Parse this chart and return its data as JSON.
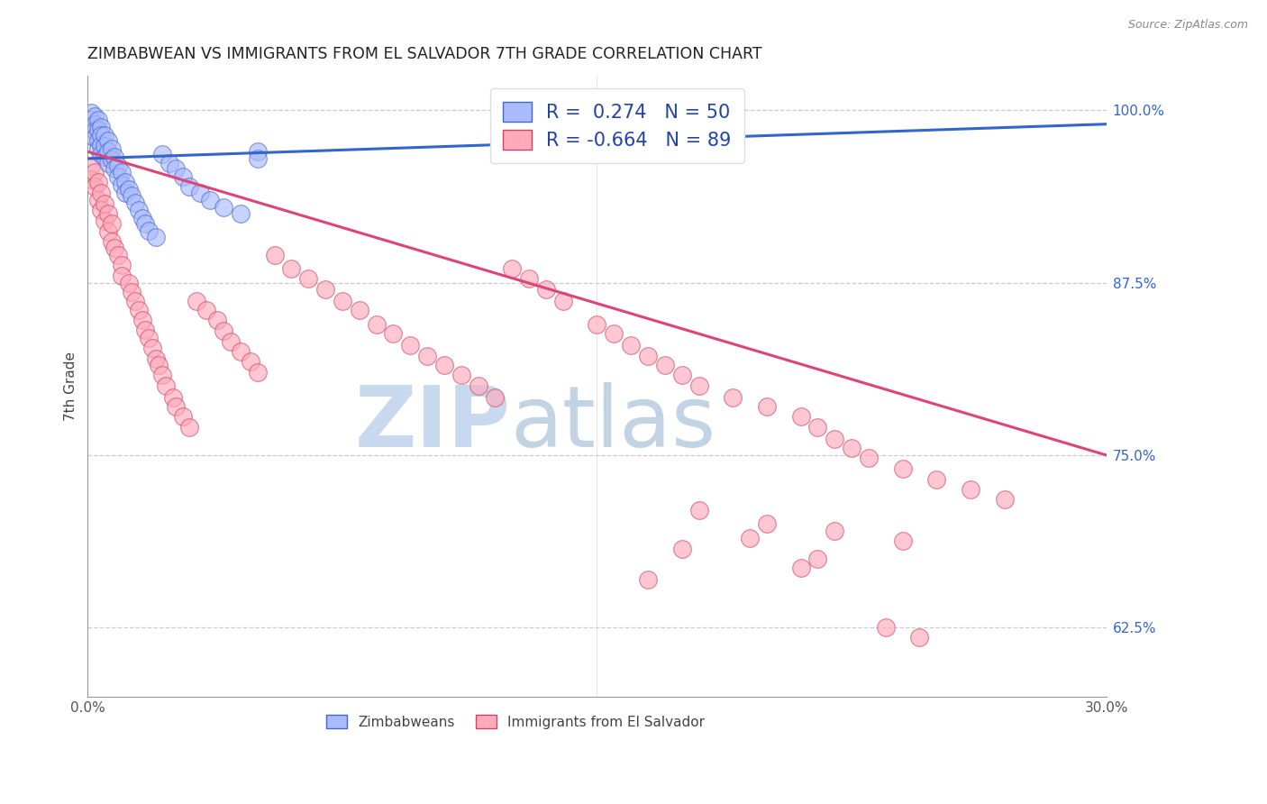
{
  "title": "ZIMBABWEAN VS IMMIGRANTS FROM EL SALVADOR 7TH GRADE CORRELATION CHART",
  "source": "Source: ZipAtlas.com",
  "ylabel": "7th Grade",
  "xlim": [
    0.0,
    0.3
  ],
  "ylim": [
    0.575,
    1.025
  ],
  "yticks_right": [
    0.625,
    0.75,
    0.875,
    1.0
  ],
  "ytickslabels_right": [
    "62.5%",
    "75.0%",
    "87.5%",
    "100.0%"
  ],
  "xtick_positions": [
    0.0,
    0.05,
    0.1,
    0.15,
    0.2,
    0.25,
    0.3
  ],
  "xticklabels": [
    "0.0%",
    "",
    "",
    "",
    "",
    "",
    "30.0%"
  ],
  "blue_R": 0.274,
  "blue_N": 50,
  "pink_R": -0.664,
  "pink_N": 89,
  "blue_scatter_color": "#aabbff",
  "blue_scatter_edge": "#4466cc",
  "pink_scatter_color": "#ffaabb",
  "pink_scatter_edge": "#cc4466",
  "blue_line_color": "#3366cc",
  "pink_line_color": "#dd4477",
  "watermark_zip_color": "#c8d8ee",
  "watermark_atlas_color": "#b8cce0",
  "legend_label_blue": "Zimbabweans",
  "legend_label_pink": "Immigrants from El Salvador",
  "blue_trendline": [
    [
      0.0,
      0.3
    ],
    [
      0.965,
      0.99
    ]
  ],
  "pink_trendline": [
    [
      0.0,
      0.3
    ],
    [
      0.97,
      0.75
    ]
  ],
  "blue_x": [
    0.001,
    0.001,
    0.001,
    0.002,
    0.002,
    0.002,
    0.002,
    0.003,
    0.003,
    0.003,
    0.003,
    0.004,
    0.004,
    0.004,
    0.004,
    0.005,
    0.005,
    0.005,
    0.006,
    0.006,
    0.006,
    0.007,
    0.007,
    0.008,
    0.008,
    0.009,
    0.009,
    0.01,
    0.01,
    0.011,
    0.011,
    0.012,
    0.013,
    0.014,
    0.015,
    0.016,
    0.017,
    0.018,
    0.02,
    0.022,
    0.024,
    0.026,
    0.028,
    0.03,
    0.033,
    0.036,
    0.04,
    0.045,
    0.05,
    0.05
  ],
  "blue_y": [
    0.998,
    0.993,
    0.988,
    0.996,
    0.99,
    0.985,
    0.98,
    0.993,
    0.986,
    0.978,
    0.972,
    0.988,
    0.982,
    0.975,
    0.968,
    0.982,
    0.974,
    0.966,
    0.978,
    0.97,
    0.962,
    0.972,
    0.964,
    0.966,
    0.958,
    0.96,
    0.952,
    0.955,
    0.946,
    0.948,
    0.94,
    0.943,
    0.938,
    0.933,
    0.928,
    0.922,
    0.918,
    0.913,
    0.908,
    0.968,
    0.962,
    0.958,
    0.952,
    0.945,
    0.94,
    0.935,
    0.93,
    0.925,
    0.97,
    0.965
  ],
  "pink_x": [
    0.001,
    0.001,
    0.002,
    0.002,
    0.003,
    0.003,
    0.004,
    0.004,
    0.005,
    0.005,
    0.006,
    0.006,
    0.007,
    0.007,
    0.008,
    0.009,
    0.01,
    0.01,
    0.012,
    0.013,
    0.014,
    0.015,
    0.016,
    0.017,
    0.018,
    0.019,
    0.02,
    0.021,
    0.022,
    0.023,
    0.025,
    0.026,
    0.028,
    0.03,
    0.032,
    0.035,
    0.038,
    0.04,
    0.042,
    0.045,
    0.048,
    0.05,
    0.055,
    0.06,
    0.065,
    0.07,
    0.075,
    0.08,
    0.085,
    0.09,
    0.095,
    0.1,
    0.105,
    0.11,
    0.115,
    0.12,
    0.125,
    0.13,
    0.135,
    0.14,
    0.15,
    0.155,
    0.16,
    0.165,
    0.17,
    0.175,
    0.18,
    0.19,
    0.2,
    0.21,
    0.215,
    0.22,
    0.225,
    0.23,
    0.24,
    0.25,
    0.26,
    0.27,
    0.18,
    0.2,
    0.22,
    0.24,
    0.195,
    0.175,
    0.215,
    0.21,
    0.165,
    0.235,
    0.245
  ],
  "pink_y": [
    0.96,
    0.95,
    0.955,
    0.945,
    0.948,
    0.935,
    0.94,
    0.928,
    0.932,
    0.92,
    0.925,
    0.912,
    0.918,
    0.905,
    0.9,
    0.895,
    0.888,
    0.88,
    0.875,
    0.868,
    0.862,
    0.855,
    0.848,
    0.841,
    0.835,
    0.828,
    0.82,
    0.815,
    0.808,
    0.8,
    0.792,
    0.785,
    0.778,
    0.77,
    0.862,
    0.855,
    0.848,
    0.84,
    0.832,
    0.825,
    0.818,
    0.81,
    0.895,
    0.885,
    0.878,
    0.87,
    0.862,
    0.855,
    0.845,
    0.838,
    0.83,
    0.822,
    0.815,
    0.808,
    0.8,
    0.792,
    0.885,
    0.878,
    0.87,
    0.862,
    0.845,
    0.838,
    0.83,
    0.822,
    0.815,
    0.808,
    0.8,
    0.792,
    0.785,
    0.778,
    0.77,
    0.762,
    0.755,
    0.748,
    0.74,
    0.732,
    0.725,
    0.718,
    0.71,
    0.7,
    0.695,
    0.688,
    0.69,
    0.682,
    0.675,
    0.668,
    0.66,
    0.625,
    0.618
  ]
}
